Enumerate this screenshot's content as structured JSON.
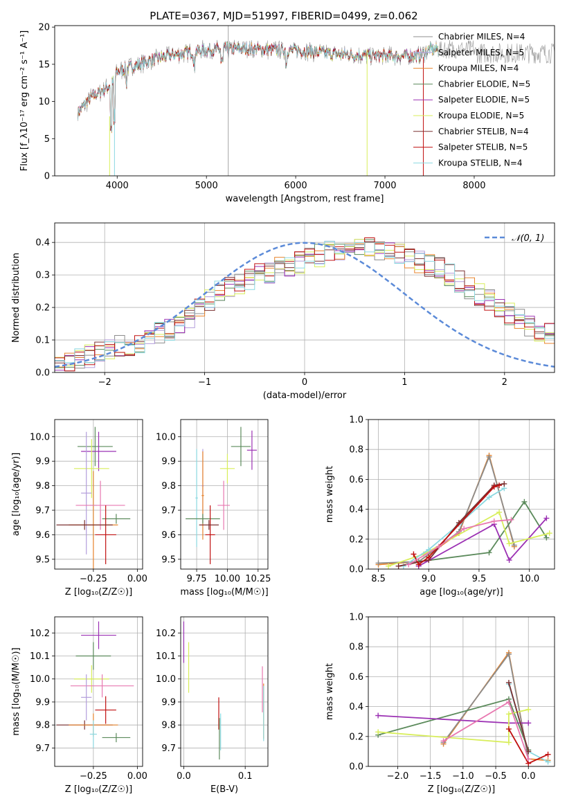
{
  "title": "PLATE=0367, MJD=51997, FIBERID=0499, z=0.062",
  "colors": {
    "chabrier_miles": "#8c8c8c",
    "salpeter_miles": "#b39ddb",
    "kroupa_miles": "#e8842c",
    "chabrier_elodie": "#5b8a5b",
    "salpeter_elodie": "#9b30b3",
    "kroupa_elodie": "#d8ee5a",
    "chabrier_stelib": "#7a3030",
    "salpeter_stelib": "#c01010",
    "kroupa_stelib": "#8ad8e0",
    "gaussian": "#5b8ad8",
    "pink": "#e878b0"
  },
  "chart_data": [
    {
      "type": "line",
      "title": "PLATE=0367, MJD=51997, FIBERID=0499, z=0.062",
      "xlabel": "wavelength [Angstrom, rest frame]",
      "ylabel": "Flux [f_λ10⁻¹⁷ erg cm⁻² s⁻¹ A⁻¹]",
      "xlim": [
        3300,
        8900
      ],
      "ylim": [
        0,
        20.2
      ],
      "xticks": [
        "4000",
        "5000",
        "6000",
        "7000",
        "8000"
      ],
      "yticks": [
        "0",
        "5",
        "10",
        "15",
        "20"
      ],
      "legend_position": "right",
      "series": [
        {
          "name": "Chabrier MILES, N_SSP=4"
        },
        {
          "name": "Salpeter MILES, N_SSP=5"
        },
        {
          "name": "Kroupa MILES, N_SSP=4"
        },
        {
          "name": "Chabrier ELODIE, N_SSP=5"
        },
        {
          "name": "Salpeter ELODIE, N_SSP=5"
        },
        {
          "name": "Kroupa ELODIE, N_SSP=5"
        },
        {
          "name": "Chabrier STELIB, N_SSP=4"
        },
        {
          "name": "Salpeter STELIB, N_SSP=5"
        },
        {
          "name": "Kroupa STELIB, N_SSP=4"
        }
      ],
      "continuum": {
        "x": [
          3560,
          3700,
          3900,
          3950,
          4000,
          4200,
          4400,
          4600,
          4800,
          5000,
          5200,
          5400,
          5600,
          5800,
          6000,
          6200,
          6400,
          6600,
          6800,
          7000,
          7200,
          7400,
          7500
        ],
        "y": [
          8.5,
          10.5,
          12.0,
          12.5,
          14.0,
          14.8,
          15.6,
          16.2,
          16.6,
          16.9,
          17.0,
          17.1,
          17.0,
          16.9,
          16.9,
          16.7,
          16.4,
          16.3,
          16.2,
          16.1,
          16.1,
          16.2,
          17.0
        ]
      }
    },
    {
      "type": "bar",
      "xlabel": "(data-model)/error",
      "ylabel": "Normed distribution",
      "xlim": [
        -2.5,
        2.5
      ],
      "ylim": [
        0,
        0.46
      ],
      "xticks": [
        "−2",
        "−1",
        "0",
        "1",
        "2"
      ],
      "yticks": [
        "0.0",
        "0.1",
        "0.2",
        "0.3",
        "0.4"
      ],
      "grid": true,
      "legend": "𝒩(0, 1)",
      "legend_position": "top-right",
      "bin_edges_start": -2.5,
      "bin_width": 0.1,
      "histogram": [
        0.03,
        0.03,
        0.04,
        0.05,
        0.06,
        0.07,
        0.08,
        0.08,
        0.09,
        0.11,
        0.12,
        0.13,
        0.15,
        0.17,
        0.2,
        0.22,
        0.25,
        0.26,
        0.27,
        0.29,
        0.3,
        0.31,
        0.32,
        0.33,
        0.34,
        0.35,
        0.36,
        0.37,
        0.37,
        0.38,
        0.38,
        0.38,
        0.37,
        0.37,
        0.36,
        0.35,
        0.34,
        0.33,
        0.32,
        0.3,
        0.28,
        0.26,
        0.24,
        0.22,
        0.2,
        0.18,
        0.16,
        0.14,
        0.13,
        0.12,
        0.1,
        0.09,
        0.08,
        0.07,
        0.06,
        0.06,
        0.05,
        0.05,
        0.04,
        0.04,
        0.04,
        0.04,
        0.03,
        0.03,
        0.03,
        0.03,
        0.03,
        0.03,
        0.03,
        0.03
      ]
    },
    {
      "type": "scatter",
      "xlabel": "Z [log₁₀(Z/Z☉)]",
      "ylabel": "age  [log₁₀(age/yr)]",
      "xlim": [
        -0.47,
        0.03
      ],
      "ylim": [
        9.46,
        10.07
      ],
      "xticks": [
        "−0.25",
        "0.00"
      ],
      "yticks": [
        "9.5",
        "9.6",
        "9.7",
        "9.8",
        "9.9",
        "10.0"
      ],
      "points": [
        {
          "x": -0.24,
          "y": 9.96,
          "xe": 0.1,
          "ye": 0.08,
          "c": "chabrier_elodie"
        },
        {
          "x": -0.22,
          "y": 9.94,
          "xe": 0.1,
          "ye": 0.08,
          "c": "salpeter_elodie"
        },
        {
          "x": -0.26,
          "y": 9.87,
          "xe": 0.1,
          "ye": 0.12,
          "c": "kroupa_elodie"
        },
        {
          "x": -0.29,
          "y": 9.77,
          "xe": 0.03,
          "ye": 0.25,
          "c": "salpeter_miles"
        },
        {
          "x": -0.25,
          "y": 9.72,
          "xe": 0.02,
          "ye": 0.14,
          "c": "kroupa_stelib"
        },
        {
          "x": -0.25,
          "y": 9.64,
          "xe": 0.14,
          "ye": 0.22,
          "c": "kroupa_miles"
        },
        {
          "x": -0.21,
          "y": 9.72,
          "xe": 0.14,
          "ye": 0.1,
          "c": "pink"
        },
        {
          "x": -0.12,
          "y": 9.665,
          "xe": 0.08,
          "ye": 0.02,
          "c": "chabrier_elodie"
        },
        {
          "x": -0.18,
          "y": 9.6,
          "xe": 0.06,
          "ye": 0.12,
          "c": "salpeter_stelib"
        },
        {
          "x": -0.3,
          "y": 9.64,
          "xe": 0.16,
          "ye": 0.02,
          "c": "chabrier_stelib"
        }
      ]
    },
    {
      "type": "scatter",
      "xlabel": "mass [log₁₀(M/M☉)]",
      "ylabel": "",
      "xlim": [
        9.62,
        10.33
      ],
      "ylim": [
        9.46,
        10.07
      ],
      "xticks": [
        "9.75",
        "10.00",
        "10.25"
      ],
      "yticks": [
        "9.5",
        "9.6",
        "9.7",
        "9.8",
        "9.9",
        "10.0"
      ],
      "points": [
        {
          "x": 10.11,
          "y": 9.96,
          "xe": 0.08,
          "ye": 0.08,
          "c": "chabrier_elodie"
        },
        {
          "x": 10.2,
          "y": 9.945,
          "xe": 0.04,
          "ye": 0.08,
          "c": "salpeter_elodie"
        },
        {
          "x": 10.0,
          "y": 9.87,
          "xe": 0.06,
          "ye": 0.06,
          "c": "kroupa_elodie"
        },
        {
          "x": 9.8,
          "y": 9.8,
          "xe": 0.01,
          "ye": 0.15,
          "c": "salpeter_miles"
        },
        {
          "x": 9.75,
          "y": 9.75,
          "xe": 0.01,
          "ye": 0.2,
          "c": "kroupa_stelib"
        },
        {
          "x": 9.8,
          "y": 9.76,
          "xe": 0.01,
          "ye": 0.18,
          "c": "kroupa_miles"
        },
        {
          "x": 9.97,
          "y": 9.72,
          "xe": 0.05,
          "ye": 0.1,
          "c": "pink"
        },
        {
          "x": 9.8,
          "y": 9.665,
          "xe": 0.14,
          "ye": 0.02,
          "c": "chabrier_elodie"
        },
        {
          "x": 9.86,
          "y": 9.6,
          "xe": 0.04,
          "ye": 0.12,
          "c": "salpeter_stelib"
        },
        {
          "x": 9.85,
          "y": 9.64,
          "xe": 0.08,
          "ye": 0.02,
          "c": "chabrier_stelib"
        }
      ]
    },
    {
      "type": "line",
      "xlabel": "age  [log₁₀(age/yr)]",
      "ylabel": "mass weight",
      "xlim": [
        8.4,
        10.25
      ],
      "ylim": [
        0,
        1.0
      ],
      "xticks": [
        "8.5",
        "9.0",
        "9.5",
        "10.0"
      ],
      "yticks": [
        "0.0",
        "0.2",
        "0.4",
        "0.6",
        "0.8",
        "1.0"
      ],
      "grid": true,
      "series": [
        {
          "c": "kroupa_miles",
          "x": [
            8.5,
            8.9,
            9.3,
            9.6,
            9.85
          ],
          "y": [
            0.03,
            0.05,
            0.24,
            0.76,
            0.15
          ]
        },
        {
          "c": "chabrier_miles",
          "x": [
            8.5,
            8.9,
            9.3,
            9.6,
            9.85
          ],
          "y": [
            0.04,
            0.05,
            0.25,
            0.75,
            0.16
          ]
        },
        {
          "c": "chabrier_elodie",
          "x": [
            8.9,
            9.6,
            9.95,
            10.17
          ],
          "y": [
            0.05,
            0.11,
            0.45,
            0.21
          ]
        },
        {
          "c": "salpeter_elodie",
          "x": [
            8.9,
            9.65,
            9.8,
            10.17
          ],
          "y": [
            0.02,
            0.3,
            0.06,
            0.34
          ]
        },
        {
          "c": "kroupa_elodie",
          "x": [
            8.6,
            8.95,
            9.7,
            9.8,
            10.2
          ],
          "y": [
            0.02,
            0.1,
            0.38,
            0.17,
            0.24
          ]
        },
        {
          "c": "kroupa_stelib",
          "x": [
            8.75,
            9.0,
            9.3,
            9.6,
            9.75
          ],
          "y": [
            0.02,
            0.13,
            0.3,
            0.48,
            0.54
          ]
        },
        {
          "c": "chabrier_stelib",
          "x": [
            8.7,
            9.0,
            9.3,
            9.65,
            9.75
          ],
          "y": [
            0.02,
            0.06,
            0.31,
            0.56,
            0.57
          ]
        },
        {
          "c": "salpeter_stelib",
          "x": [
            8.85,
            8.9,
            9.0,
            9.65,
            9.7
          ],
          "y": [
            0.1,
            0.03,
            0.08,
            0.55,
            0.56
          ]
        },
        {
          "c": "pink",
          "x": [
            8.8,
            9.1,
            9.35,
            9.65,
            9.82
          ],
          "y": [
            0.03,
            0.15,
            0.27,
            0.32,
            0.33
          ]
        }
      ]
    },
    {
      "type": "scatter",
      "xlabel": "Z [log₁₀(Z/Z☉)]",
      "ylabel": "mass [log₁₀(M/M☉)]",
      "xlim": [
        -0.47,
        0.03
      ],
      "ylim": [
        9.62,
        10.27
      ],
      "xticks": [
        "−0.25",
        "0.00"
      ],
      "yticks": [
        "9.7",
        "9.8",
        "9.9",
        "10.0",
        "10.1",
        "10.2"
      ],
      "points": [
        {
          "x": -0.22,
          "y": 10.19,
          "xe": 0.1,
          "ye": 0.06,
          "c": "salpeter_elodie"
        },
        {
          "x": -0.25,
          "y": 10.1,
          "xe": 0.1,
          "ye": 0.06,
          "c": "chabrier_elodie"
        },
        {
          "x": -0.26,
          "y": 10.0,
          "xe": 0.1,
          "ye": 0.06,
          "c": "kroupa_elodie"
        },
        {
          "x": -0.2,
          "y": 9.97,
          "xe": 0.18,
          "ye": 0.05,
          "c": "pink"
        },
        {
          "x": -0.29,
          "y": 9.92,
          "xe": 0.03,
          "ye": 0.1,
          "c": "salpeter_miles"
        },
        {
          "x": -0.18,
          "y": 9.865,
          "xe": 0.06,
          "ye": 0.06,
          "c": "salpeter_stelib"
        },
        {
          "x": -0.3,
          "y": 9.8,
          "xe": 0.16,
          "ye": 0.02,
          "c": "chabrier_stelib"
        },
        {
          "x": -0.25,
          "y": 9.8,
          "xe": 0.14,
          "ye": 0.05,
          "c": "kroupa_miles"
        },
        {
          "x": -0.25,
          "y": 9.76,
          "xe": 0.02,
          "ye": 0.06,
          "c": "kroupa_stelib"
        },
        {
          "x": -0.12,
          "y": 9.745,
          "xe": 0.08,
          "ye": 0.02,
          "c": "chabrier_elodie"
        }
      ]
    },
    {
      "type": "scatter",
      "xlabel": "E(B-V)",
      "ylabel": "",
      "xlim": [
        -0.005,
        0.137
      ],
      "ylim": [
        9.62,
        10.27
      ],
      "xticks": [
        "0.0",
        "0.1"
      ],
      "yticks": [
        "9.7",
        "9.8",
        "9.9",
        "10.0",
        "10.1",
        "10.2"
      ],
      "points": [
        {
          "x": 0.0,
          "y": 10.16,
          "xe": 0,
          "ye": 0.09,
          "c": "salpeter_elodie"
        },
        {
          "x": 0.008,
          "y": 10.05,
          "xe": 0,
          "ye": 0.11,
          "c": "kroupa_elodie"
        },
        {
          "x": 0.128,
          "y": 9.955,
          "xe": 0,
          "ye": 0.1,
          "c": "pink"
        },
        {
          "x": 0.13,
          "y": 9.86,
          "xe": 0,
          "ye": 0.12,
          "c": "kroupa_miles"
        },
        {
          "x": 0.13,
          "y": 9.85,
          "xe": 0,
          "ye": 0.12,
          "c": "kroupa_stelib"
        },
        {
          "x": 0.057,
          "y": 9.85,
          "xe": 0,
          "ye": 0.07,
          "c": "salpeter_stelib"
        },
        {
          "x": 0.06,
          "y": 9.77,
          "xe": 0,
          "ye": 0.08,
          "c": "kroupa_stelib"
        },
        {
          "x": 0.058,
          "y": 9.74,
          "xe": 0,
          "ye": 0.09,
          "c": "chabrier_elodie"
        }
      ]
    },
    {
      "type": "line",
      "xlabel": "Z [log₁₀(Z/Z☉)]",
      "ylabel": "mass weight",
      "xlim": [
        -2.45,
        0.4
      ],
      "ylim": [
        0,
        1.0
      ],
      "xticks": [
        "−2.0",
        "−1.5",
        "−1.0",
        "−0.5",
        "0.0"
      ],
      "yticks": [
        "0.0",
        "0.2",
        "0.4",
        "0.6",
        "0.8",
        "1.0"
      ],
      "grid": true,
      "series": [
        {
          "c": "kroupa_miles",
          "x": [
            -1.3,
            -0.3,
            0.0,
            0.3
          ],
          "y": [
            0.15,
            0.76,
            0.05,
            0.04
          ]
        },
        {
          "c": "chabrier_miles",
          "x": [
            -1.3,
            -0.3,
            0.0
          ],
          "y": [
            0.16,
            0.75,
            0.05
          ]
        },
        {
          "c": "chabrier_elodie",
          "x": [
            -2.3,
            -0.3,
            0.0
          ],
          "y": [
            0.21,
            0.45,
            0.11
          ]
        },
        {
          "c": "salpeter_elodie",
          "x": [
            -2.3,
            -0.3,
            0.0
          ],
          "y": [
            0.34,
            0.29,
            0.29
          ]
        },
        {
          "c": "kroupa_elodie",
          "x": [
            -2.3,
            -0.3,
            -0.3,
            0.0
          ],
          "y": [
            0.23,
            0.16,
            0.35,
            0.38
          ]
        },
        {
          "c": "kroupa_stelib",
          "x": [
            -0.3,
            0.0,
            0.3
          ],
          "y": [
            0.55,
            0.1,
            0.03
          ]
        },
        {
          "c": "chabrier_stelib",
          "x": [
            -0.3,
            0.0
          ],
          "y": [
            0.56,
            0.1
          ]
        },
        {
          "c": "salpeter_stelib",
          "x": [
            -0.3,
            0.0,
            0.3
          ],
          "y": [
            0.25,
            0.02,
            0.08
          ]
        },
        {
          "c": "pink",
          "x": [
            -1.3,
            -0.3,
            0.0
          ],
          "y": [
            0.17,
            0.43,
            0.05
          ]
        }
      ]
    }
  ]
}
